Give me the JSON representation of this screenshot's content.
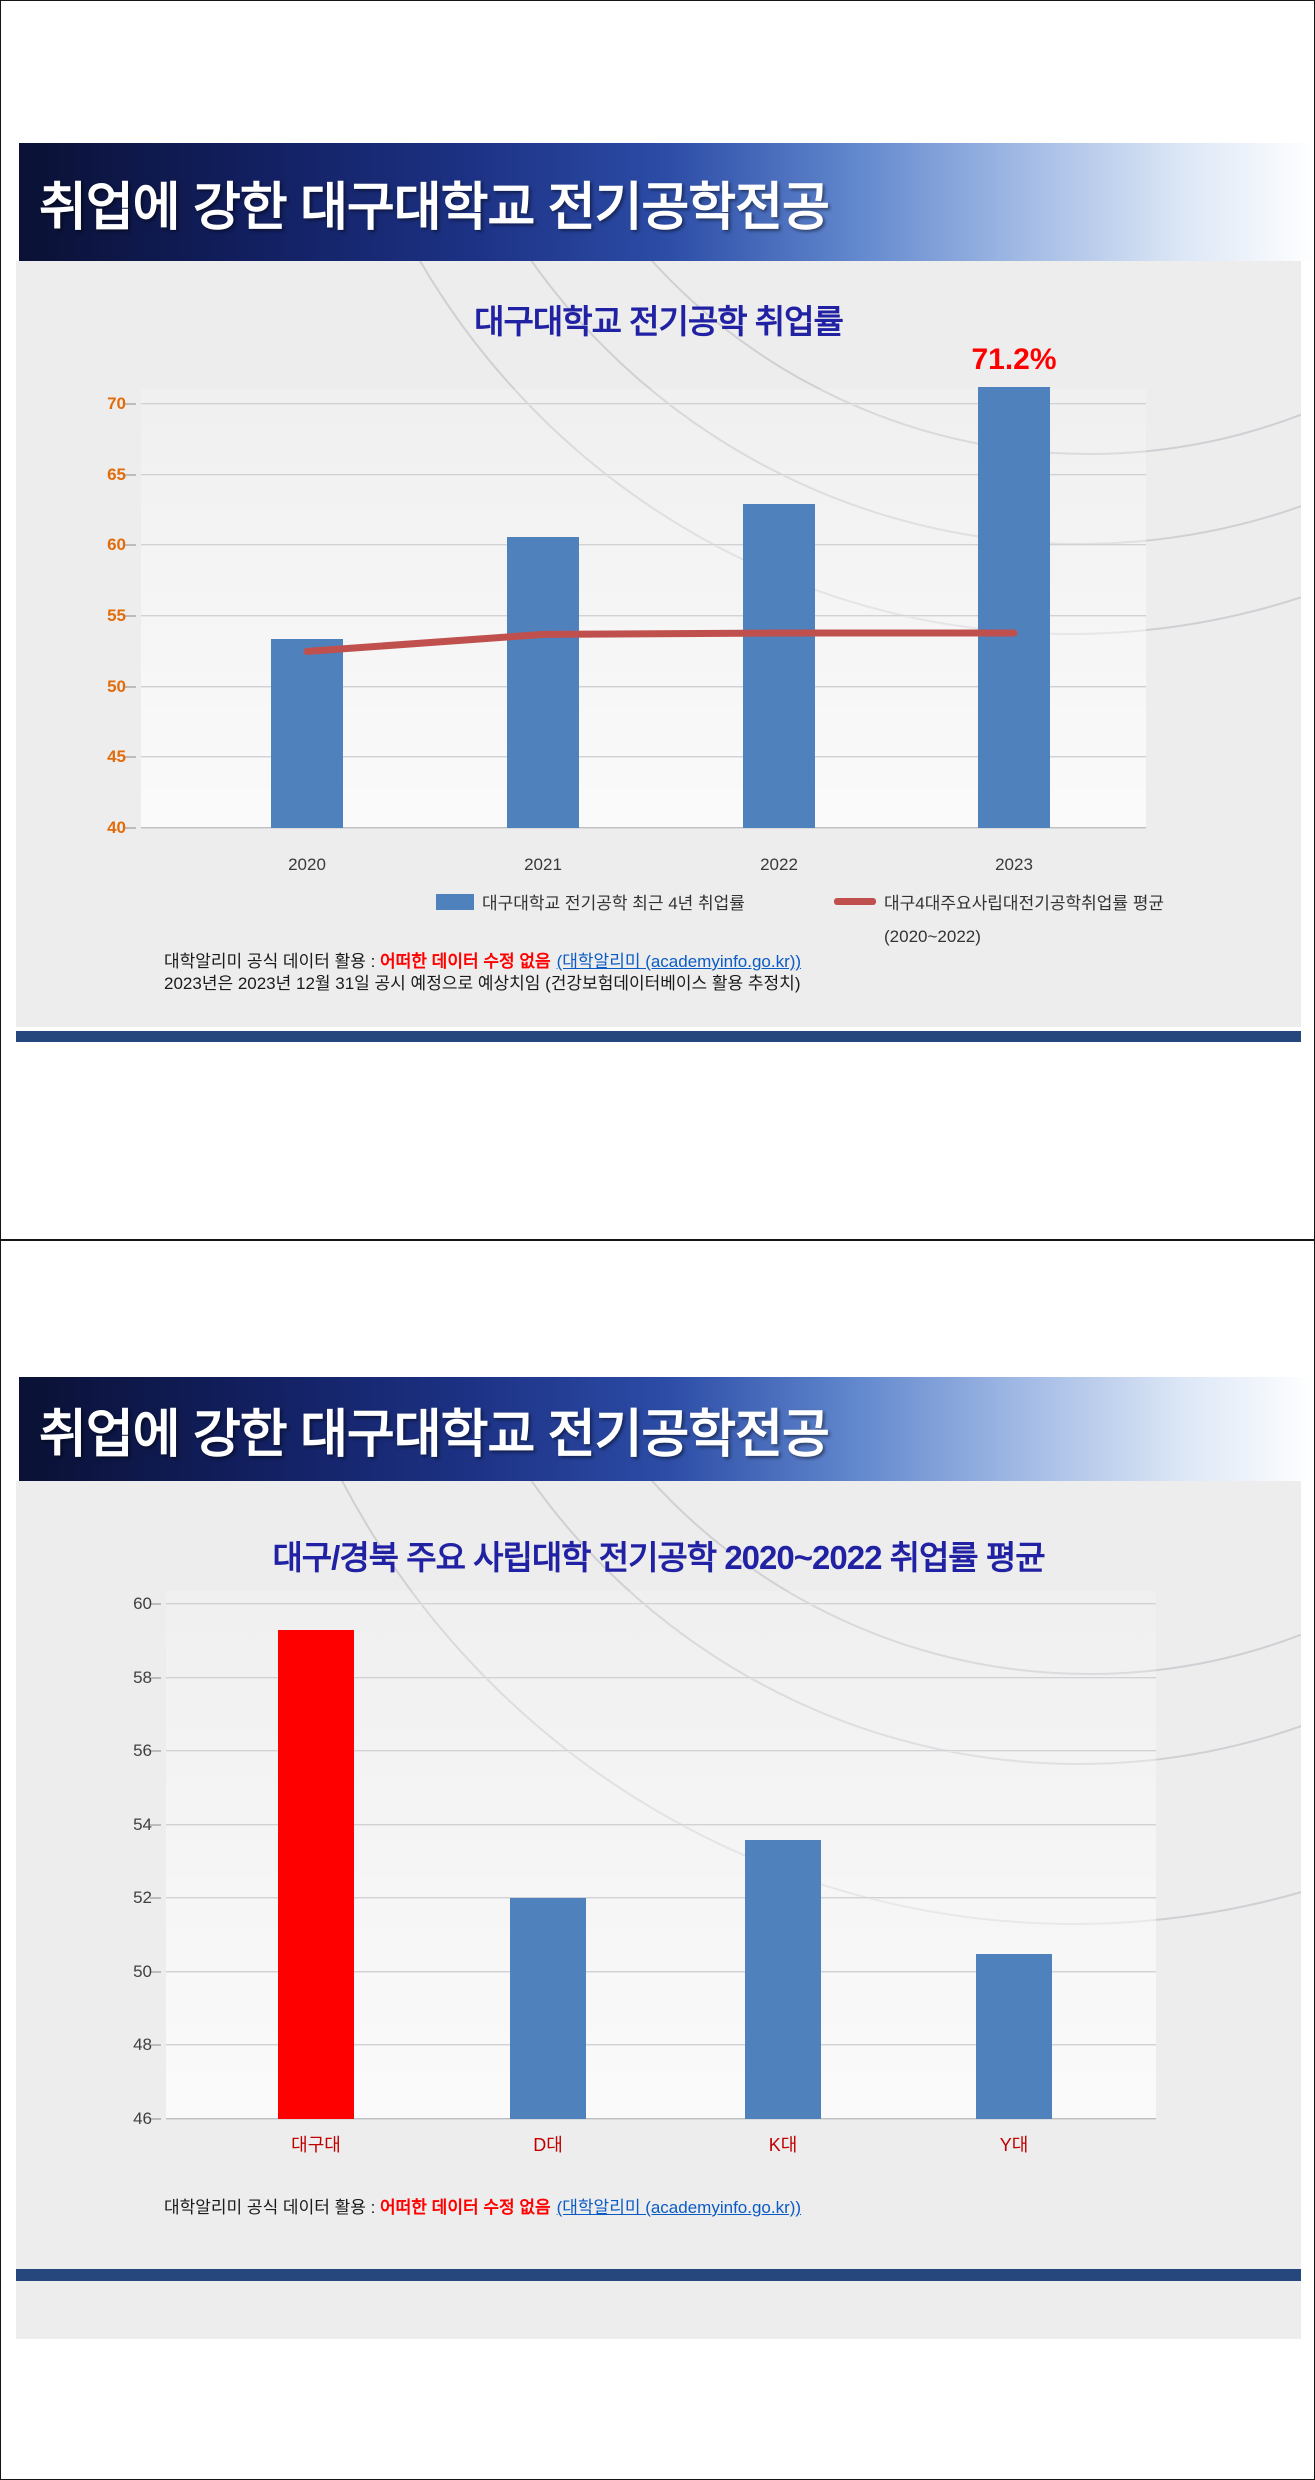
{
  "colors": {
    "banner_navy": "#0a1134",
    "banner_blue": "#2c4ca6",
    "bar_blue": "#4f81bd",
    "highlight_bar_red": "#ff0000",
    "average_line_red": "#c0504d",
    "title_blue": "#2121a3",
    "axis_orange": "#e36c0a",
    "axis_gray": "#3f3f3f",
    "category_red": "#c00000",
    "divider_navy": "#26477d",
    "link_blue": "#0b5bc4",
    "annotation_red": "#ff0000"
  },
  "slide1": {
    "banner_title": "취업에 강한 대구대학교 전기공학전공",
    "footer": {
      "line1_prefix": "대학알리미 공식 데이터 활용 : ",
      "line1_emphasis": "어떠한 데이터 수정 없음",
      "line1_link": "(대학알리미 (academyinfo.go.kr))",
      "line2": "2023년은 2023년 12월 31일 공시 예정으로 예상치임 (건강보험데이터베이스 활용 추정치)"
    }
  },
  "slide2": {
    "banner_title": "취업에 강한 대구대학교 전기공학전공",
    "footer": {
      "line1_prefix": "대학알리미 공식 데이터 활용 : ",
      "line1_emphasis": "어떠한 데이터 수정 없음",
      "line1_link": "(대학알리미 (academyinfo.go.kr))"
    }
  },
  "chart_data": [
    {
      "type": "bar",
      "title": "대구대학교 전기공학 취업률",
      "categories": [
        "2020",
        "2021",
        "2022",
        "2023"
      ],
      "series": [
        {
          "name": "대구대학교 전기공학 최근 4년 취업률",
          "type": "bar",
          "color": "#4f81bd",
          "values": [
            53.4,
            60.6,
            62.9,
            71.2
          ]
        },
        {
          "name": "대구4대주요사립대전기공학취업률 평균",
          "name_sub": "(2020~2022)",
          "type": "line",
          "color": "#c0504d",
          "values": [
            52.5,
            53.7,
            53.8,
            53.8
          ]
        }
      ],
      "ylim": [
        40,
        70
      ],
      "ytick_step": 5,
      "grid": true,
      "legend_position": "bottom",
      "annotation": {
        "text": "71.2%",
        "category_index": 3,
        "color": "#ff0000"
      }
    },
    {
      "type": "bar",
      "title": "대구/경북 주요 사립대학  전기공학 2020~2022 취업률 평균",
      "categories": [
        "대구대",
        "D대",
        "K대",
        "Y대"
      ],
      "values": [
        59.3,
        52,
        53.6,
        50.5
      ],
      "bar_colors": [
        "#ff0000",
        "#4f81bd",
        "#4f81bd",
        "#4f81bd"
      ],
      "ylim": [
        46,
        60
      ],
      "ytick_step": 2,
      "grid": true,
      "legend_position": "none"
    }
  ]
}
